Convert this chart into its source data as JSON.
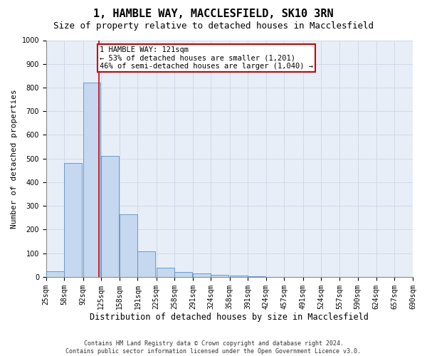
{
  "title": "1, HAMBLE WAY, MACCLESFIELD, SK10 3RN",
  "subtitle": "Size of property relative to detached houses in Macclesfield",
  "xlabel": "Distribution of detached houses by size in Macclesfield",
  "ylabel": "Number of detached properties",
  "footer_line1": "Contains HM Land Registry data © Crown copyright and database right 2024.",
  "footer_line2": "Contains public sector information licensed under the Open Government Licence v3.0.",
  "property_label": "1 HAMBLE WAY: 121sqm",
  "annotation_line1": "← 53% of detached houses are smaller (1,201)",
  "annotation_line2": "46% of semi-detached houses are larger (1,040) →",
  "bin_edges": [
    25,
    58,
    92,
    125,
    158,
    191,
    225,
    258,
    291,
    324,
    358,
    391,
    424,
    457,
    491,
    524,
    557,
    590,
    624,
    657,
    690
  ],
  "bar_heights": [
    25,
    480,
    820,
    510,
    265,
    107,
    38,
    20,
    15,
    8,
    5,
    2,
    1,
    0,
    0,
    0,
    0,
    0,
    0,
    0
  ],
  "bar_color": "#c5d8f0",
  "bar_edge_color": "#5a8fc0",
  "vline_color": "#cc0000",
  "vline_x": 121,
  "annotation_box_color": "#cc0000",
  "ylim": [
    0,
    1000
  ],
  "yticks": [
    0,
    100,
    200,
    300,
    400,
    500,
    600,
    700,
    800,
    900,
    1000
  ],
  "grid_color": "#d0d8e8",
  "bg_color": "#e8eef8",
  "title_fontsize": 11,
  "subtitle_fontsize": 9,
  "xlabel_fontsize": 8.5,
  "ylabel_fontsize": 8,
  "tick_fontsize": 7,
  "annotation_fontsize": 7.5
}
